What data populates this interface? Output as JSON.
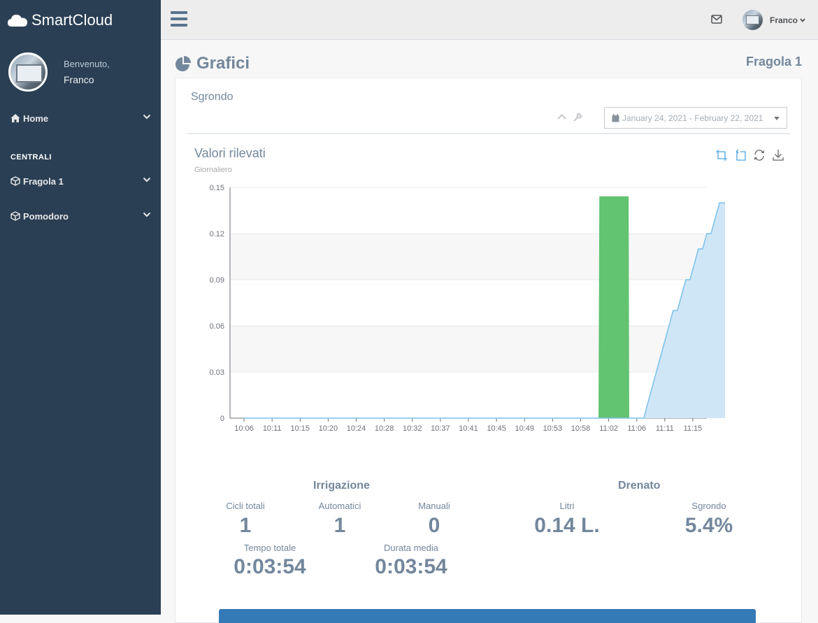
{
  "brand": {
    "name": "SmartCloud",
    "icon": "cloud-icon"
  },
  "profile": {
    "welcome": "Benvenuto,",
    "name": "Franco"
  },
  "sidebar": {
    "home_label": "Home",
    "section_title": "CENTRALI",
    "items": [
      {
        "label": "Fragola 1",
        "icon": "cube-icon"
      },
      {
        "label": "Pomodoro",
        "icon": "cube-icon"
      }
    ]
  },
  "topnav": {
    "user_name": "Franco"
  },
  "page": {
    "title": "Grafici",
    "device": "Fragola 1"
  },
  "panel": {
    "title": "Sgrondo",
    "date_range": "January 24, 2021 - February 22, 2021"
  },
  "chart": {
    "title": "Valori rilevati",
    "subtitle": "Giornaliero"
  },
  "chart_data": {
    "type": "area",
    "title": "Valori rilevati",
    "subtitle": "Giornaliero",
    "xlabel": "",
    "ylabel": "",
    "ylim": [
      0,
      0.15
    ],
    "y_ticks": [
      "0",
      "0.03",
      "0.06",
      "0.09",
      "0.12",
      "0.15"
    ],
    "x_ticks": [
      "10:06",
      "10:11",
      "10:15",
      "10:20",
      "10:24",
      "10:28",
      "10:32",
      "10:37",
      "10:41",
      "10:45",
      "10:49",
      "10:53",
      "10:58",
      "11:02",
      "11:06",
      "11:11",
      "11:15"
    ],
    "grid": true,
    "series": [
      {
        "color": "#62c370",
        "kind": "bar-area",
        "x": [
          12.65,
          12.68,
          13.7,
          13.72
        ],
        "y": [
          0,
          0.144,
          0.144,
          0
        ]
      },
      {
        "color": "#7cc1ec",
        "fill": "#cfe6f7",
        "kind": "step-area",
        "x": [
          0,
          14.25,
          14.4,
          14.55,
          14.7,
          14.85,
          15.0,
          15.15,
          15.3,
          15.45,
          15.6,
          15.75,
          15.9,
          16.05,
          16.2,
          16.35,
          16.5,
          16.65,
          16.8,
          16.95,
          17.15
        ],
        "y": [
          0,
          0,
          0.01,
          0.02,
          0.03,
          0.04,
          0.05,
          0.06,
          0.07,
          0.07,
          0.08,
          0.09,
          0.09,
          0.1,
          0.11,
          0.11,
          0.12,
          0.12,
          0.13,
          0.14,
          0.14
        ]
      }
    ]
  },
  "stats": {
    "irrigazione_title": "Irrigazione",
    "drenato_title": "Drenato",
    "cicli_label": "Cicli totali",
    "cicli_value": "1",
    "auto_label": "Automatici",
    "auto_value": "1",
    "manual_label": "Manuali",
    "manual_value": "0",
    "tempo_label": "Tempo totale",
    "tempo_value": "0:03:54",
    "durata_label": "Durata media",
    "durata_value": "0:03:54",
    "litri_label": "Litri",
    "litri_value": "0.14 L.",
    "sgrondo_label": "Sgrondo",
    "sgrondo_value": "5.4%"
  }
}
